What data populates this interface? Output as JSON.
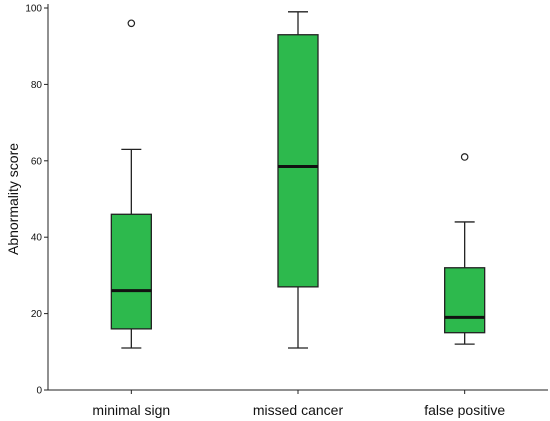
{
  "chart_data": {
    "type": "box",
    "ylabel": "Abnormality score",
    "xlabel": "",
    "ylim": [
      0,
      100
    ],
    "yticks": [
      0,
      20,
      40,
      60,
      80,
      100
    ],
    "grid": false,
    "box_color": "#2db94d",
    "categories": [
      "minimal sign",
      "missed cancer",
      "false positive"
    ],
    "boxes": [
      {
        "category": "minimal sign",
        "whisker_low": 11,
        "q1": 16,
        "median": 26,
        "q3": 46,
        "whisker_high": 63,
        "outliers": [
          96
        ]
      },
      {
        "category": "missed cancer",
        "whisker_low": 11,
        "q1": 27,
        "median": 58.5,
        "q3": 93,
        "whisker_high": 99,
        "outliers": []
      },
      {
        "category": "false positive",
        "whisker_low": 12,
        "q1": 15,
        "median": 19,
        "q3": 32,
        "whisker_high": 44,
        "outliers": [
          61
        ]
      }
    ]
  }
}
